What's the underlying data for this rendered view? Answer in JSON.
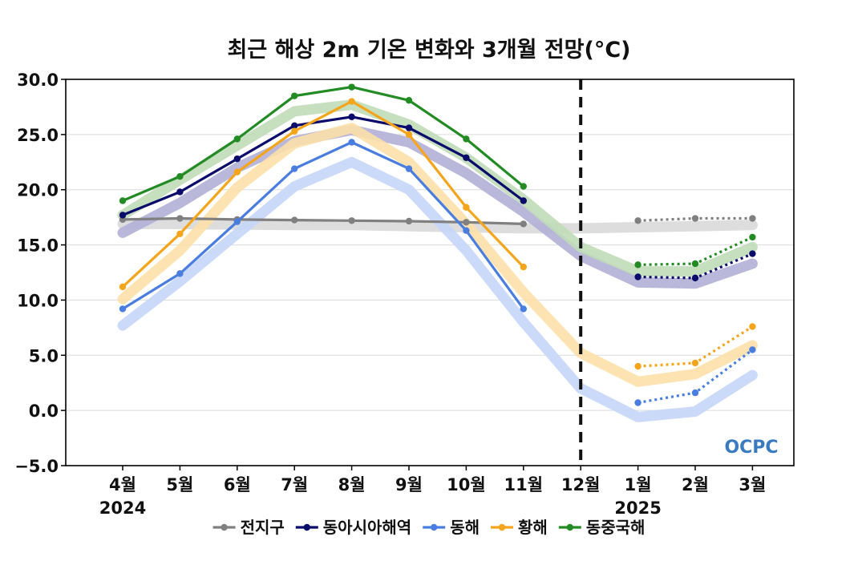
{
  "chart_data": {
    "type": "line",
    "title": "최근 해상 2m 기온 변화와 3개월 전망(°C)",
    "categories": [
      "4월",
      "5월",
      "6월",
      "7월",
      "8월",
      "9월",
      "10월",
      "11월",
      "12월",
      "1월",
      "2월",
      "3월"
    ],
    "year_labels": [
      {
        "category_index": 0,
        "text": "2024"
      },
      {
        "category_index": 9,
        "text": "2025"
      }
    ],
    "ylim": [
      -5.0,
      30.0
    ],
    "yticks": [
      "30.0",
      "25.0",
      "20.0",
      "15.0",
      "10.0",
      "5.0",
      "0.0",
      "−5.0"
    ],
    "ytick_values": [
      30,
      25,
      20,
      15,
      10,
      5,
      0,
      -5
    ],
    "grid": true,
    "forecast_divider_index": 8,
    "logo": "OCPC",
    "legend_position": "bottom",
    "series": [
      {
        "name": "전지구",
        "color": "#808080",
        "climatology_color": "#d9d9d9",
        "observed": [
          17.3,
          17.4,
          17.3,
          17.25,
          17.2,
          17.15,
          17.05,
          16.9,
          null,
          null,
          null,
          null
        ],
        "forecast": [
          null,
          null,
          null,
          null,
          null,
          null,
          null,
          null,
          null,
          17.2,
          17.4,
          17.4
        ],
        "climatology": [
          16.9,
          16.9,
          16.85,
          16.8,
          16.8,
          16.7,
          16.6,
          16.5,
          16.5,
          16.6,
          16.7,
          16.8
        ]
      },
      {
        "name": "동아시아해역",
        "color": "#0b0b6b",
        "climatology_color": "#b3b0d6",
        "observed": [
          17.7,
          19.8,
          22.8,
          25.8,
          26.6,
          25.6,
          22.9,
          19.0,
          null,
          null,
          null,
          null
        ],
        "forecast": [
          null,
          null,
          null,
          null,
          null,
          null,
          null,
          null,
          null,
          12.1,
          12.0,
          14.2
        ],
        "climatology": [
          16.1,
          18.8,
          22.0,
          24.4,
          25.4,
          24.3,
          21.5,
          18.0,
          14.0,
          11.6,
          11.5,
          13.3
        ]
      },
      {
        "name": "동해",
        "color": "#4a7de0",
        "climatology_color": "#c7d6fa",
        "observed": [
          9.2,
          12.4,
          17.1,
          21.9,
          24.3,
          21.9,
          16.3,
          9.2,
          null,
          null,
          null,
          null
        ],
        "forecast": [
          null,
          null,
          null,
          null,
          null,
          null,
          null,
          null,
          null,
          0.7,
          1.6,
          5.5
        ],
        "climatology": [
          7.7,
          11.7,
          16.0,
          20.3,
          22.5,
          20.0,
          14.5,
          8.0,
          2.0,
          -0.6,
          -0.1,
          3.2
        ]
      },
      {
        "name": "황해",
        "color": "#f4a51c",
        "climatology_color": "#fce0a8",
        "observed": [
          11.2,
          16.0,
          21.6,
          25.3,
          28.0,
          25.0,
          18.4,
          13.0,
          null,
          null,
          null,
          null
        ],
        "forecast": [
          null,
          null,
          null,
          null,
          null,
          null,
          null,
          null,
          null,
          4.0,
          4.3,
          7.6
        ],
        "climatology": [
          10.1,
          14.5,
          20.2,
          24.2,
          25.6,
          22.5,
          16.9,
          10.7,
          5.2,
          2.6,
          3.3,
          5.9
        ]
      },
      {
        "name": "동중국해",
        "color": "#238b23",
        "climatology_color": "#bfdcb8",
        "observed": [
          19.0,
          21.2,
          24.6,
          28.5,
          29.3,
          28.1,
          24.6,
          20.3,
          null,
          null,
          null,
          null
        ],
        "forecast": [
          null,
          null,
          null,
          null,
          null,
          null,
          null,
          null,
          null,
          13.2,
          13.3,
          15.7
        ],
        "climatology": [
          17.7,
          20.9,
          24.0,
          27.1,
          27.7,
          25.9,
          22.9,
          19.1,
          14.8,
          12.6,
          12.6,
          14.8
        ]
      }
    ]
  }
}
